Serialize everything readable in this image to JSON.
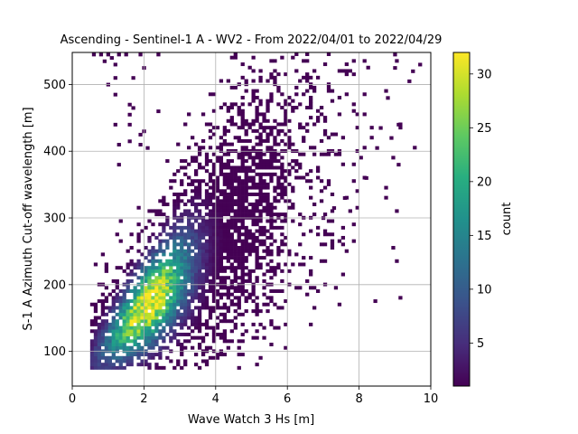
{
  "chart_data": {
    "type": "heatmap",
    "title": "Ascending - Sentinel-1 A - WV2 - From 2022/04/01 to 2022/04/29",
    "xlabel": "Wave Watch 3 Hs [m]",
    "ylabel": "S-1 A Azimuth Cut-off wavelength [m]",
    "xlim": [
      0,
      10
    ],
    "ylim": [
      48,
      548
    ],
    "xticks": [
      0,
      2,
      4,
      6,
      8,
      10
    ],
    "yticks": [
      100,
      200,
      300,
      400,
      500
    ],
    "grid": true,
    "colormap": "viridis",
    "colorbar": {
      "label": "count",
      "range": [
        1,
        32
      ],
      "ticks": [
        5,
        10,
        15,
        20,
        25,
        30
      ]
    },
    "bin_size": {
      "x": 0.1,
      "y": 5
    },
    "density_model": {
      "relation": "y ≈ 60 + 52·x",
      "peak": {
        "x": 2.1,
        "y": 200,
        "count": 32
      }
    },
    "outliers": [
      [
        0.6,
        545
      ],
      [
        0.8,
        545
      ],
      [
        1.0,
        545
      ],
      [
        1.3,
        545
      ],
      [
        1.5,
        545
      ],
      [
        0.9,
        535
      ],
      [
        1.2,
        530
      ],
      [
        1.1,
        540
      ],
      [
        1.9,
        545
      ],
      [
        2.4,
        545
      ],
      [
        1.2,
        510
      ],
      [
        1.0,
        500
      ],
      [
        1.7,
        510
      ],
      [
        1.2,
        485
      ],
      [
        1.6,
        470
      ],
      [
        1.7,
        465
      ],
      [
        1.6,
        455
      ],
      [
        1.2,
        440
      ],
      [
        1.6,
        440
      ],
      [
        1.9,
        425
      ],
      [
        2.0,
        430
      ],
      [
        1.3,
        410
      ],
      [
        1.6,
        415
      ],
      [
        1.9,
        410
      ],
      [
        1.3,
        380
      ],
      [
        2.1,
        405
      ],
      [
        2.4,
        460
      ],
      [
        2.0,
        525
      ],
      [
        8.6,
        435
      ],
      [
        8.9,
        420
      ],
      [
        9.1,
        440
      ],
      [
        9.4,
        505
      ],
      [
        9.5,
        520
      ],
      [
        9.0,
        525
      ],
      [
        9.7,
        530
      ],
      [
        8.8,
        480
      ],
      [
        8.5,
        405
      ],
      [
        9.1,
        380
      ],
      [
        8.2,
        360
      ],
      [
        7.6,
        330
      ],
      [
        7.3,
        315
      ],
      [
        7.0,
        300
      ],
      [
        9.0,
        545
      ]
    ]
  }
}
